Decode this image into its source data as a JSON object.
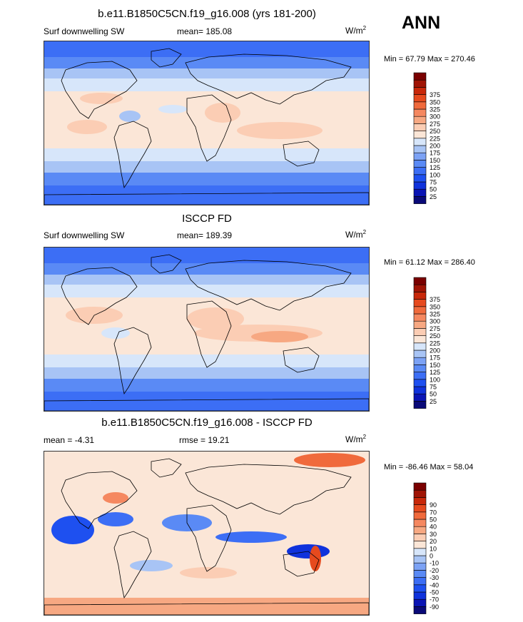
{
  "season": "ANN",
  "panels": [
    {
      "title": "b.e11.B1850C5CN.f19_g16.008 (yrs 181-200)",
      "left_label": "Surf downwelling SW",
      "center_label": "mean= 185.08",
      "unit_base": "W/m",
      "unit_exp": "2",
      "minmax": "Min =  67.79 Max = 270.46",
      "map_kind": "model"
    },
    {
      "title": "ISCCP FD",
      "left_label": "Surf downwelling SW",
      "center_label": "mean= 189.39",
      "unit_base": "W/m",
      "unit_exp": "2",
      "minmax": "Min =  61.12 Max = 286.40",
      "map_kind": "obs"
    },
    {
      "title": "b.e11.B1850C5CN.f19_g16.008 - ISCCP FD",
      "left_label": "mean =  -4.31",
      "center_label": "rmse =  19.21",
      "unit_base": "W/m",
      "unit_exp": "2",
      "minmax": "Min = -86.46 Max =  58.04",
      "map_kind": "diff"
    }
  ],
  "chart_data": [
    {
      "type": "heatmap",
      "title": "b.e11.B1850C5CN.f19_g16.008 (yrs 181-200)",
      "variable": "Surf downwelling SW",
      "units": "W/m2",
      "mean": 185.08,
      "min": 67.79,
      "max": 270.46,
      "colorbar_levels": [
        25,
        50,
        75,
        100,
        125,
        150,
        175,
        200,
        225,
        250,
        275,
        300,
        325,
        350,
        375
      ],
      "colorbar_colors": [
        "#0a0a78",
        "#0a14b4",
        "#0f32dc",
        "#1e50f0",
        "#3c6ef5",
        "#5a8af5",
        "#7ca2f5",
        "#a8c4f5",
        "#d7e6fa",
        "#fbe6d7",
        "#fbcdb4",
        "#f7a882",
        "#f58860",
        "#f06a3c",
        "#e64a1e",
        "#c8280a",
        "#a01405",
        "#7a0000"
      ]
    },
    {
      "type": "heatmap",
      "title": "ISCCP FD",
      "variable": "Surf downwelling SW",
      "units": "W/m2",
      "mean": 189.39,
      "min": 61.12,
      "max": 286.4,
      "colorbar_levels": [
        25,
        50,
        75,
        100,
        125,
        150,
        175,
        200,
        225,
        250,
        275,
        300,
        325,
        350,
        375
      ],
      "colorbar_colors": [
        "#0a0a78",
        "#0a14b4",
        "#0f32dc",
        "#1e50f0",
        "#3c6ef5",
        "#5a8af5",
        "#7ca2f5",
        "#a8c4f5",
        "#d7e6fa",
        "#fbe6d7",
        "#fbcdb4",
        "#f7a882",
        "#f58860",
        "#f06a3c",
        "#e64a1e",
        "#c8280a",
        "#a01405",
        "#7a0000"
      ]
    },
    {
      "type": "heatmap",
      "title": "b.e11.B1850C5CN.f19_g16.008 - ISCCP FD",
      "units": "W/m2",
      "mean": -4.31,
      "rmse": 19.21,
      "min": -86.46,
      "max": 58.04,
      "colorbar_levels": [
        -90,
        -70,
        -50,
        -40,
        -30,
        -20,
        -10,
        0,
        10,
        20,
        30,
        40,
        50,
        70,
        90
      ],
      "colorbar_colors": [
        "#0a0a78",
        "#0a14b4",
        "#0f32dc",
        "#1e50f0",
        "#3c6ef5",
        "#5a8af5",
        "#7ca2f5",
        "#a8c4f5",
        "#d7e6fa",
        "#fbe6d7",
        "#fbcdb4",
        "#f7a882",
        "#f58860",
        "#f06a3c",
        "#e64a1e",
        "#c8280a",
        "#a01405",
        "#7a0000"
      ]
    }
  ]
}
